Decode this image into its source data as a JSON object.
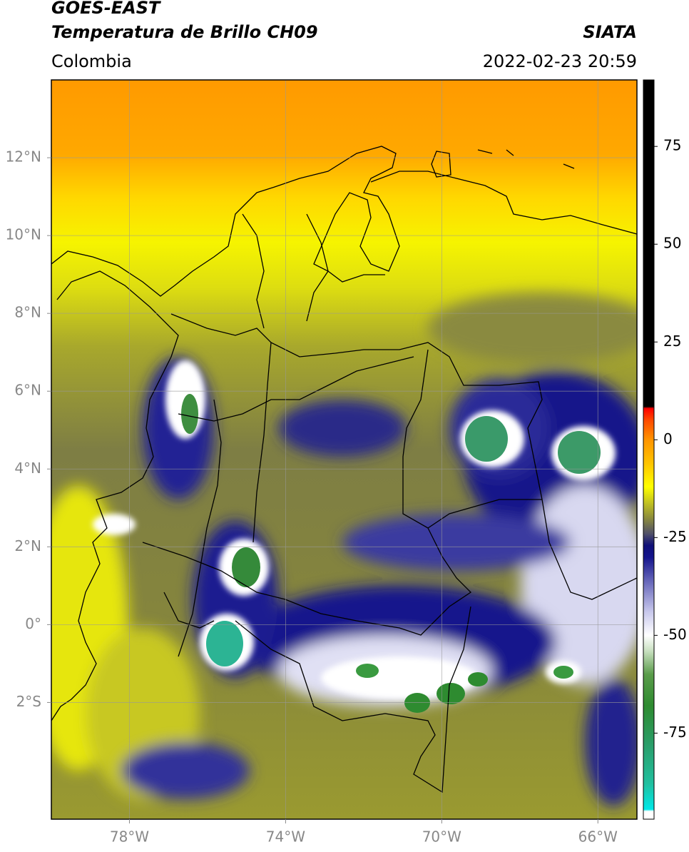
{
  "header": {
    "title": "GOES-EAST",
    "subtitle": "Temperatura de Brillo CH09",
    "source": "SIATA",
    "region": "Colombia",
    "datetime": "2022-02-23 20:59"
  },
  "map": {
    "xlim": [
      -80,
      -65
    ],
    "ylim": [
      -5,
      14
    ],
    "grid": true,
    "xticks": [
      {
        "value": -78,
        "label": "78°W"
      },
      {
        "value": -74,
        "label": "74°W"
      },
      {
        "value": -70,
        "label": "70°W"
      },
      {
        "value": -66,
        "label": "66°W"
      }
    ],
    "yticks": [
      {
        "value": 12,
        "label": "12°N"
      },
      {
        "value": 10,
        "label": "10°N"
      },
      {
        "value": 8,
        "label": "8°N"
      },
      {
        "value": 6,
        "label": "6°N"
      },
      {
        "value": 4,
        "label": "4°N"
      },
      {
        "value": 2,
        "label": "2°N"
      },
      {
        "value": 0,
        "label": "0°"
      },
      {
        "value": -2,
        "label": "2°S"
      }
    ]
  },
  "colorbar": {
    "lim": [
      -97,
      92
    ],
    "ticks": [
      75,
      50,
      25,
      0,
      -25,
      -50,
      -75
    ],
    "colormap": [
      {
        "value": -97,
        "color": "#ffffff"
      },
      {
        "value": -95,
        "color": "#ffffff"
      },
      {
        "value": -94.5,
        "color": "#00e8e8"
      },
      {
        "value": -88,
        "color": "#20c0a0"
      },
      {
        "value": -78,
        "color": "#2a9e6a"
      },
      {
        "value": -68,
        "color": "#2e8b30"
      },
      {
        "value": -60,
        "color": "#5a9c4a"
      },
      {
        "value": -54,
        "color": "#c8e0c0"
      },
      {
        "value": -50,
        "color": "#ffffff"
      },
      {
        "value": -44,
        "color": "#c8c8ec"
      },
      {
        "value": -36,
        "color": "#6464b8"
      },
      {
        "value": -30,
        "color": "#14148c"
      },
      {
        "value": -27,
        "color": "#101078"
      },
      {
        "value": -24,
        "color": "#505068"
      },
      {
        "value": -20,
        "color": "#8c8c3c"
      },
      {
        "value": -16,
        "color": "#c4c420"
      },
      {
        "value": -12,
        "color": "#ffff00"
      },
      {
        "value": -6,
        "color": "#ffc400"
      },
      {
        "value": 0,
        "color": "#ff9400"
      },
      {
        "value": 5,
        "color": "#ff4a00"
      },
      {
        "value": 8,
        "color": "#ff0000"
      },
      {
        "value": 8.5,
        "color": "#000000"
      },
      {
        "value": 92,
        "color": "#000000"
      }
    ]
  }
}
